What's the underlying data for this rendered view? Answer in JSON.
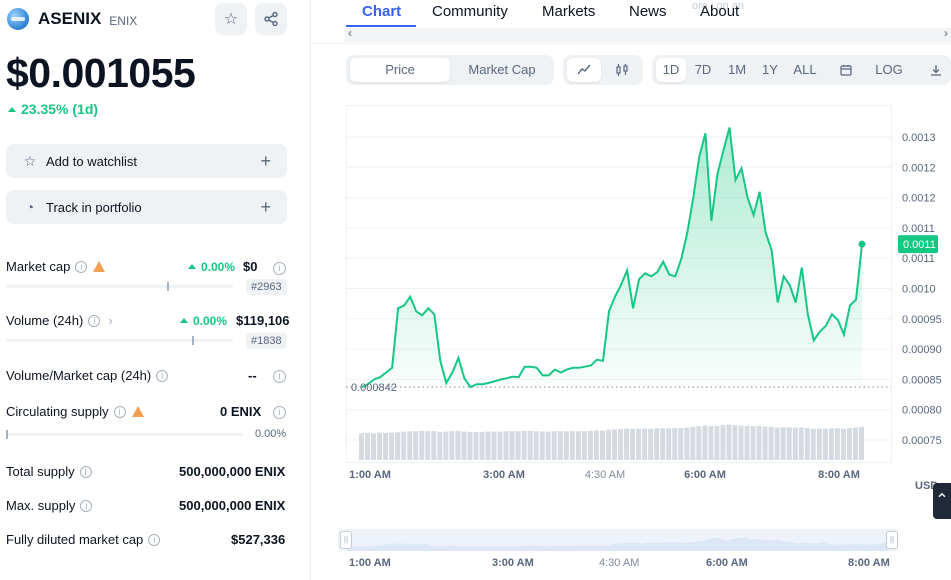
{
  "coin": {
    "name": "ASENIX",
    "symbol": "ENIX",
    "price": "$0.001055",
    "change": "23.35% (1d)"
  },
  "actions": {
    "watchlist": "Add to watchlist",
    "portfolio": "Track in portfolio"
  },
  "stats": {
    "market_cap": {
      "label": "Market cap",
      "pct": "0.00%",
      "value": "$0",
      "rank": "#2963",
      "bar_fraction": 0.71
    },
    "volume": {
      "label": "Volume (24h)",
      "pct": "0.00%",
      "value": "$119,106",
      "rank": "#1838",
      "bar_fraction": 0.82
    },
    "vol_mcap": {
      "label": "Volume/Market cap (24h)",
      "value": "--"
    },
    "circulating": {
      "label": "Circulating supply",
      "value": "0 ENIX",
      "pct": "0.00%",
      "bar_fraction": 0.0
    },
    "total_supply": {
      "label": "Total supply",
      "value": "500,000,000 ENIX"
    },
    "max_supply": {
      "label": "Max. supply",
      "value": "500,000,000 ENIX"
    },
    "fdmc": {
      "label": "Fully diluted market cap",
      "value": "$527,336"
    }
  },
  "tabs": [
    "Chart",
    "Community",
    "Markets",
    "News",
    "About"
  ],
  "tab_ghost_text": "ore i        on an",
  "toggles": {
    "price": "Price",
    "market_cap": "Market Cap"
  },
  "ranges": [
    "1D",
    "7D",
    "1M",
    "1Y",
    "ALL"
  ],
  "log_label": "LOG",
  "currency": "USD",
  "chart_data": {
    "type": "area",
    "x_labels": [
      "1:00 AM",
      "3:00 AM",
      "4:30 AM",
      "6:00 AM",
      "8:00 AM"
    ],
    "y_ticks": [
      "0.0013",
      "0.0012",
      "0.0012",
      "0.0011",
      "0.0011",
      "0.0010",
      "0.00095",
      "0.00090",
      "0.00085",
      "0.00080",
      "0.00075"
    ],
    "current_value_label": "0.0011",
    "min_label": "0.000842",
    "ylim": [
      0.00073,
      0.00133
    ],
    "values": [
      0.000855,
      0.00086,
      0.000868,
      0.000872,
      0.00088,
      0.000888,
      0.00099,
      0.000995,
      0.00101,
      0.000985,
      0.000978,
      0.00099,
      0.00098,
      0.0009,
      0.000862,
      0.00088,
      0.000905,
      0.00087,
      0.000855,
      0.00086,
      0.00086,
      0.000862,
      0.000865,
      0.000868,
      0.00087,
      0.000873,
      0.000872,
      0.00089,
      0.00089,
      0.000888,
      0.000875,
      0.000875,
      0.000885,
      0.00088,
      0.000885,
      0.000888,
      0.000888,
      0.00089,
      0.000892,
      0.000902,
      0.0009,
      0.000985,
      0.00101,
      0.00103,
      0.001055,
      0.00099,
      0.00104,
      0.00105,
      0.001045,
      0.001052,
      0.00107,
      0.001048,
      0.001045,
      0.001075,
      0.00112,
      0.00118,
      0.00125,
      0.00129,
      0.00114,
      0.00122,
      0.00126,
      0.0013,
      0.00121,
      0.00123,
      0.00118,
      0.00115,
      0.00119,
      0.00112,
      0.00109,
      0.001,
      0.001045,
      0.00103,
      0.001,
      0.00106,
      0.00098,
      0.000935,
      0.00095,
      0.00096,
      0.00098,
      0.00097,
      0.000945,
      0.000995,
      0.001005,
      0.0011
    ],
    "volume": [
      0.74,
      0.75,
      0.74,
      0.76,
      0.75,
      0.76,
      0.77,
      0.79,
      0.8,
      0.8,
      0.81,
      0.8,
      0.8,
      0.78,
      0.79,
      0.8,
      0.81,
      0.79,
      0.78,
      0.78,
      0.78,
      0.79,
      0.79,
      0.79,
      0.8,
      0.8,
      0.8,
      0.81,
      0.81,
      0.8,
      0.79,
      0.79,
      0.8,
      0.8,
      0.8,
      0.8,
      0.8,
      0.8,
      0.81,
      0.82,
      0.82,
      0.84,
      0.85,
      0.86,
      0.87,
      0.86,
      0.87,
      0.87,
      0.87,
      0.88,
      0.88,
      0.88,
      0.88,
      0.89,
      0.9,
      0.92,
      0.94,
      0.96,
      0.94,
      0.95,
      0.97,
      0.98,
      0.97,
      0.96,
      0.95,
      0.94,
      0.95,
      0.93,
      0.92,
      0.9,
      0.91,
      0.91,
      0.9,
      0.91,
      0.89,
      0.87,
      0.87,
      0.87,
      0.88,
      0.88,
      0.87,
      0.89,
      0.9,
      0.92
    ]
  },
  "mini_labels": [
    "1:00 AM",
    "3:00 AM",
    "4:30 AM",
    "6:00 AM",
    "8:00 AM"
  ]
}
